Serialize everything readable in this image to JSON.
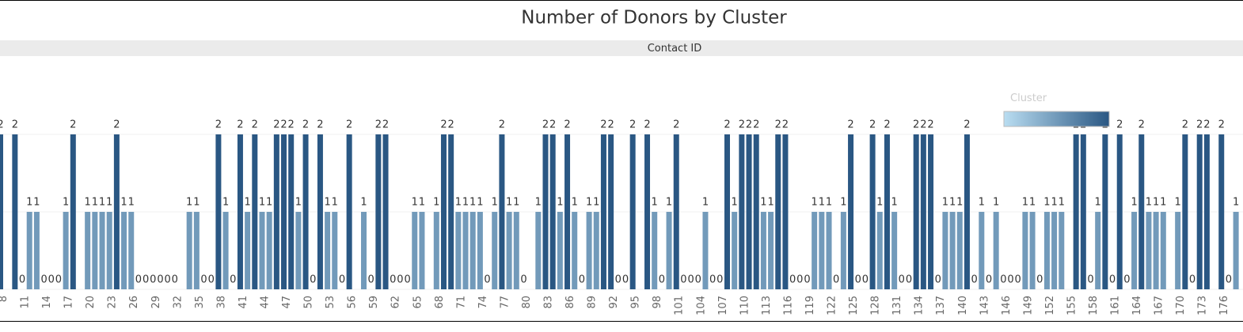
{
  "chart_data": {
    "type": "bar",
    "title": "Number of Donors by Cluster",
    "x_label": "Contact ID",
    "legend_title": "Cluster",
    "color_range": [
      "#b9ddf1",
      "#2a5783"
    ],
    "ylim": [
      0,
      2
    ],
    "yticks": [
      0,
      1,
      2
    ],
    "grid": true,
    "categories": [
      "8",
      null,
      null,
      "11",
      null,
      null,
      "14",
      null,
      null,
      "17",
      null,
      null,
      "20",
      null,
      null,
      "23",
      null,
      null,
      "26",
      null,
      null,
      "29",
      null,
      null,
      "32",
      null,
      null,
      "35",
      null,
      null,
      "38",
      null,
      null,
      "41",
      null,
      null,
      "44",
      null,
      null,
      "47",
      null,
      null,
      "50",
      null,
      null,
      "53",
      null,
      null,
      "56",
      null,
      null,
      "59",
      null,
      null,
      "62",
      null,
      null,
      "65",
      null,
      null,
      "68",
      null,
      null,
      "71",
      null,
      null,
      "74",
      null,
      null,
      "77",
      null,
      null,
      "80",
      null,
      null,
      "83",
      null,
      null,
      "86",
      null,
      null,
      "89",
      null,
      null,
      "92",
      null,
      null,
      "95",
      null,
      null,
      "98",
      null,
      null,
      "101",
      null,
      null,
      "104",
      null,
      null,
      "107",
      null,
      null,
      "110",
      null,
      null,
      "113",
      null,
      null,
      "116",
      null,
      null,
      "119",
      null,
      null,
      "122",
      null,
      null,
      "125",
      null,
      null,
      "128",
      null,
      null,
      "131",
      null,
      null,
      "134",
      null,
      null,
      "137",
      null,
      null,
      "140",
      null,
      null,
      "143",
      null,
      null,
      "146",
      null,
      null,
      "149",
      null,
      null,
      "152",
      null,
      null,
      "155",
      null,
      null,
      "158",
      null,
      null,
      "161",
      null,
      null,
      "164",
      null,
      null,
      "167",
      null,
      null,
      "170",
      null,
      null,
      "173",
      null,
      null,
      "176",
      null,
      null
    ],
    "values": [
      2,
      null,
      2,
      0,
      1,
      1,
      0,
      0,
      0,
      1,
      2,
      null,
      1,
      1,
      1,
      1,
      2,
      1,
      1,
      0,
      0,
      0,
      0,
      0,
      0,
      null,
      1,
      1,
      0,
      0,
      2,
      1,
      0,
      2,
      1,
      2,
      1,
      1,
      2,
      2,
      2,
      1,
      2,
      0,
      2,
      1,
      1,
      0,
      2,
      null,
      1,
      0,
      2,
      2,
      0,
      0,
      0,
      1,
      1,
      null,
      1,
      2,
      2,
      1,
      1,
      1,
      1,
      0,
      1,
      2,
      1,
      1,
      0,
      null,
      1,
      2,
      2,
      1,
      2,
      1,
      0,
      1,
      1,
      2,
      2,
      0,
      0,
      2,
      null,
      2,
      1,
      0,
      1,
      2,
      0,
      0,
      0,
      1,
      0,
      0,
      2,
      1,
      2,
      2,
      2,
      1,
      1,
      2,
      2,
      0,
      0,
      0,
      1,
      1,
      1,
      0,
      1,
      2,
      0,
      0,
      2,
      1,
      2,
      1,
      0,
      0,
      2,
      2,
      2,
      0,
      1,
      1,
      1,
      2,
      0,
      1,
      0,
      1,
      0,
      0,
      0,
      1,
      1,
      0,
      1,
      1,
      1,
      null,
      2,
      2,
      0,
      1,
      2,
      0,
      2,
      0,
      1,
      2,
      1,
      1,
      1,
      null,
      1,
      2,
      0,
      2,
      2,
      null,
      2,
      0,
      1
    ]
  }
}
